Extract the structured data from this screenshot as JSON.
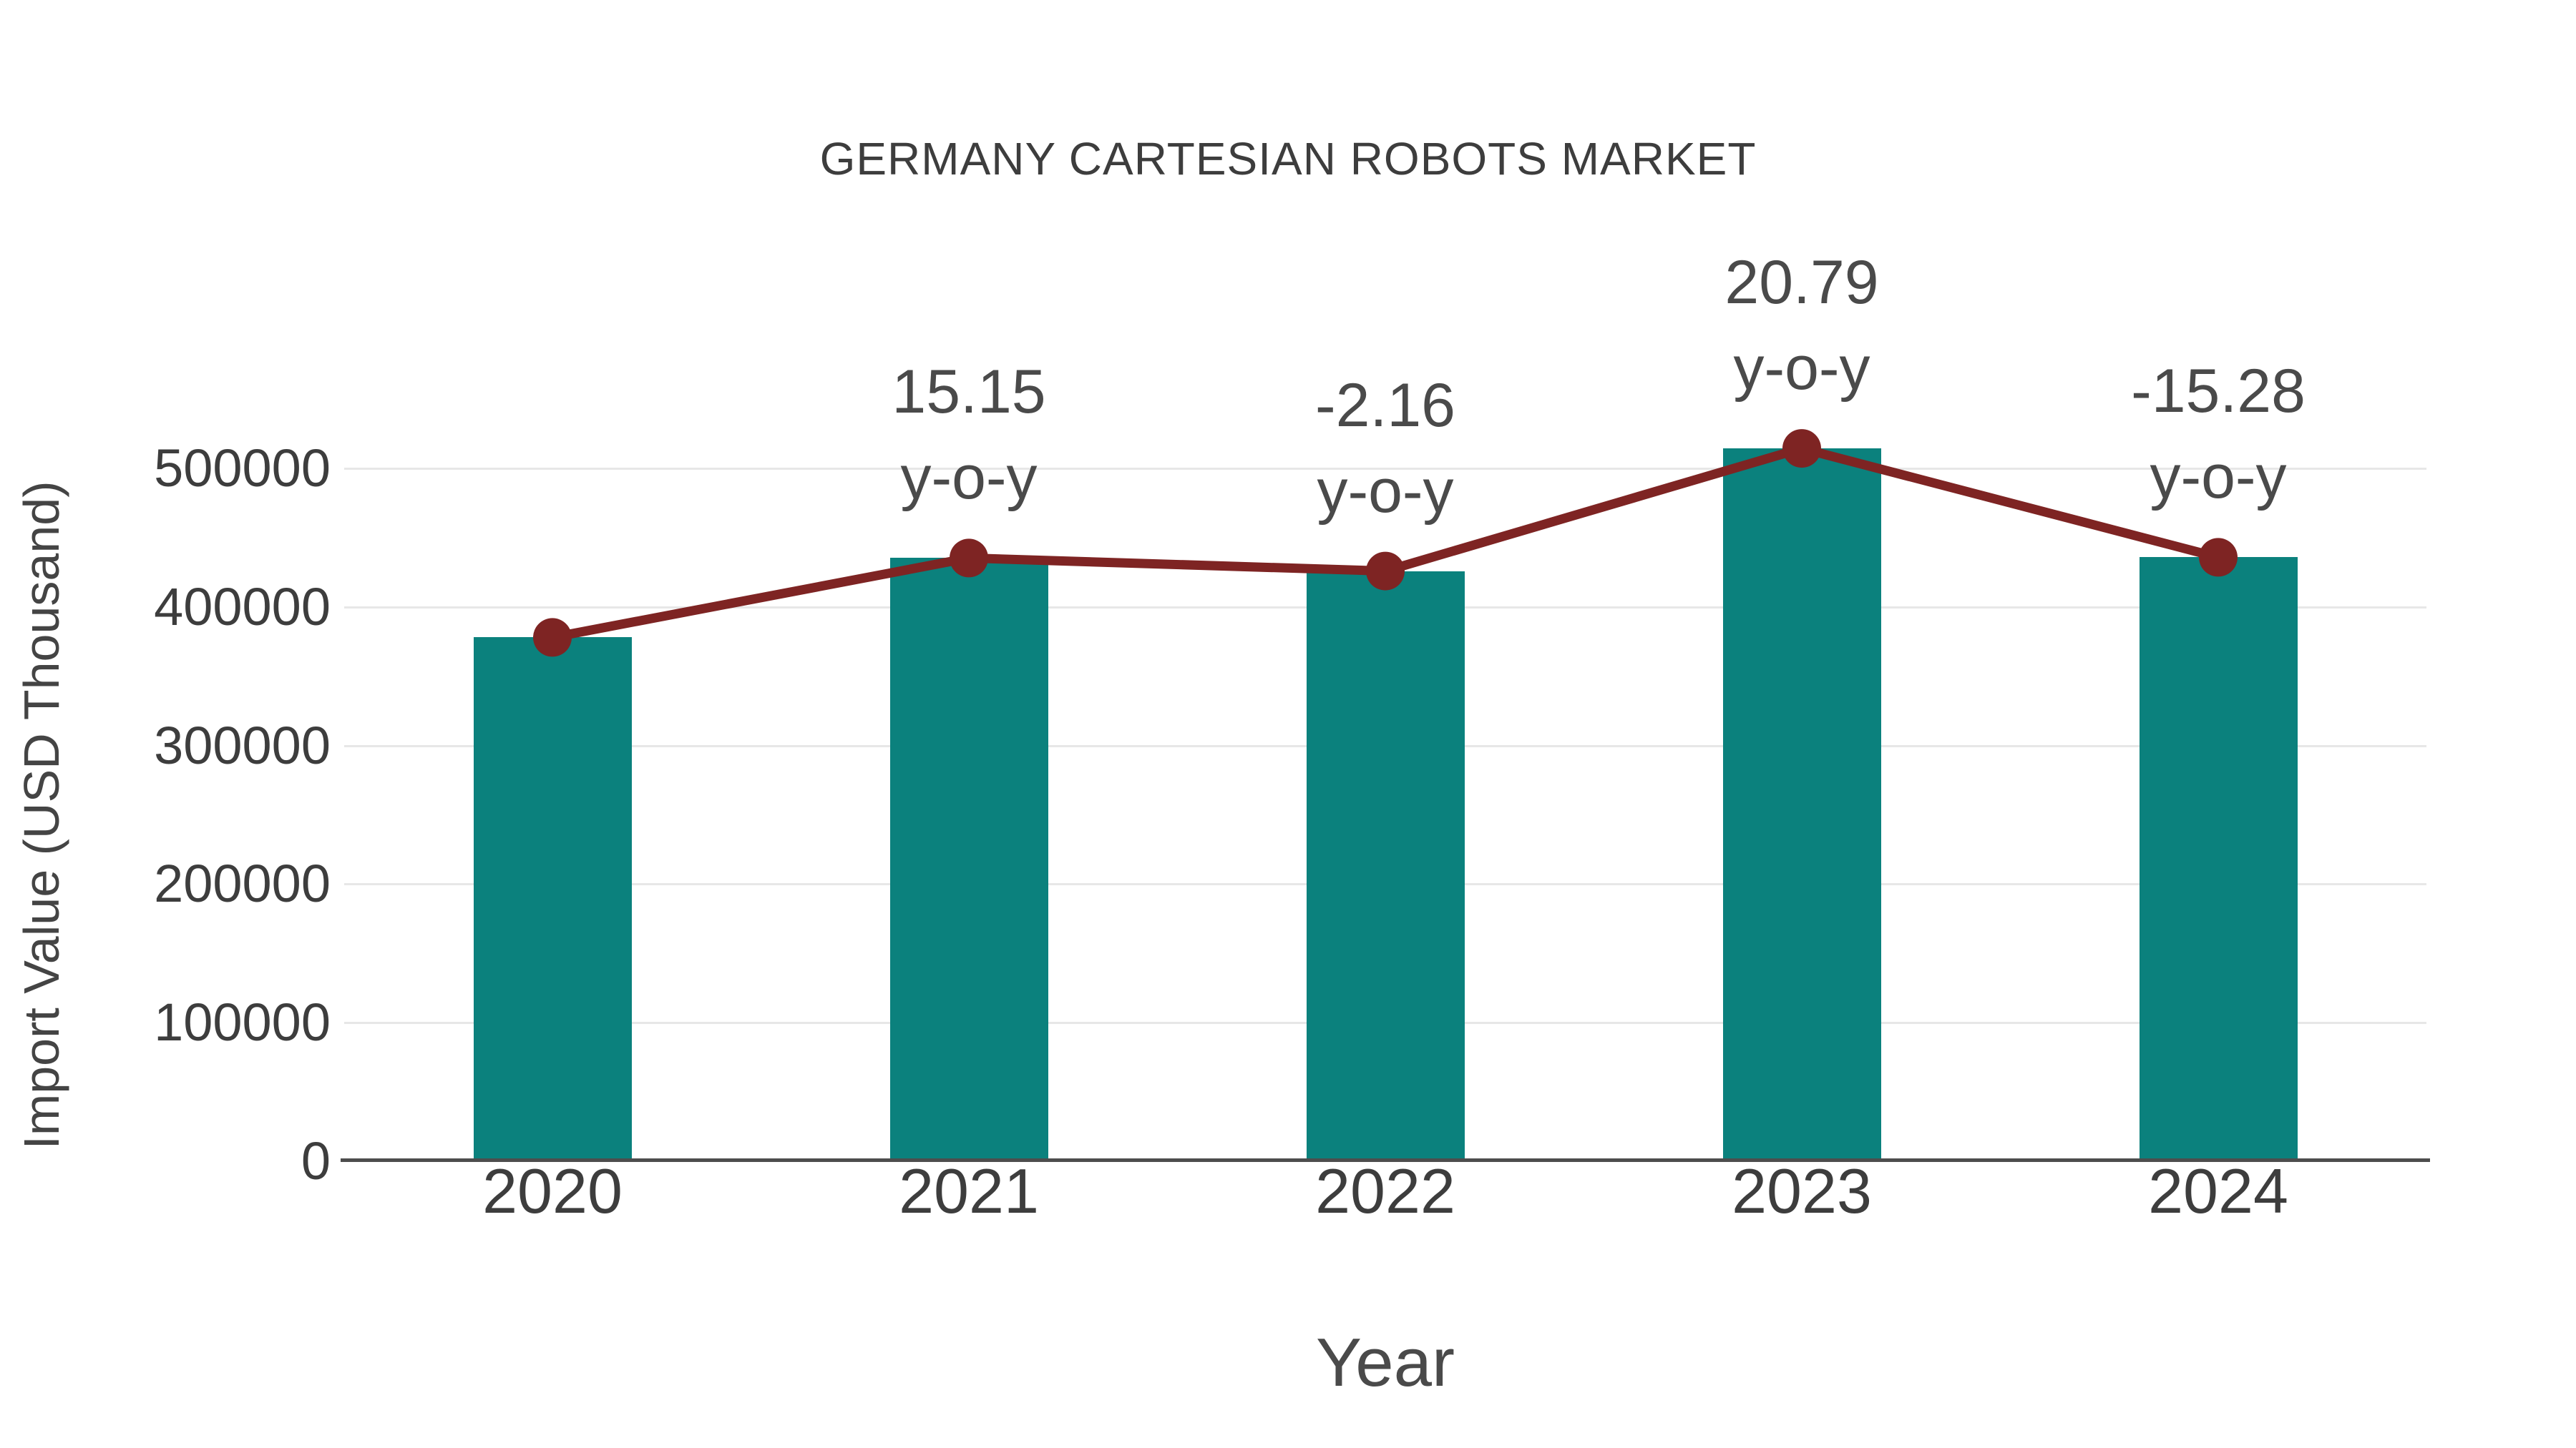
{
  "chart_data": {
    "type": "bar+line",
    "title": "GERMANY CARTESIAN ROBOTS MARKET",
    "xlabel": "Year",
    "ylabel": "Import Value (USD Thousand)",
    "categories": [
      "2020",
      "2021",
      "2022",
      "2023",
      "2024"
    ],
    "yticks": [
      0,
      100000,
      200000,
      300000,
      400000,
      500000
    ],
    "ylim": [
      0,
      500000
    ],
    "grid": true,
    "legend": "none",
    "series": [
      {
        "name": "Import Value bars",
        "type": "bar",
        "color": "#0b817d",
        "values": [
          378000,
          435300,
          425900,
          514400,
          435800
        ]
      },
      {
        "name": "Import Value trend line",
        "type": "line",
        "color": "#7e2423",
        "marker_color": "#7e2423",
        "values": [
          378000,
          435300,
          425900,
          514400,
          435800
        ]
      }
    ],
    "annotations": [
      {
        "category": "2021",
        "value": "15.15",
        "suffix": "y-o-y"
      },
      {
        "category": "2022",
        "value": "-2.16",
        "suffix": "y-o-y"
      },
      {
        "category": "2023",
        "value": "20.79",
        "suffix": "y-o-y"
      },
      {
        "category": "2024",
        "value": "-15.28",
        "suffix": "y-o-y"
      }
    ],
    "colors": {
      "background": "#ffffff",
      "gridline": "#e7e7e7",
      "axis_line": "#4d4d4d",
      "title_text": "#3d3d3d",
      "tick_text": "#3d3d3d",
      "annotation_text": "#4a4a4a"
    }
  }
}
